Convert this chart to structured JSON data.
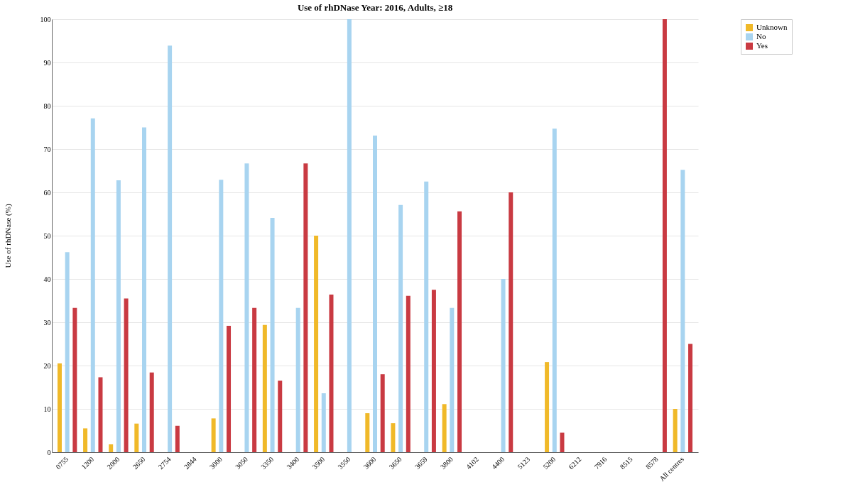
{
  "chart_data": {
    "type": "bar",
    "title": "Use of rhDNase Year: 2016, Adults, ≥18",
    "ylabel": "Use of rhDNase (%)",
    "categories": [
      "0755",
      "1200",
      "2000",
      "2650",
      "2754",
      "2844",
      "3000",
      "3050",
      "3350",
      "3400",
      "3500",
      "3550",
      "3600",
      "3650",
      "3659",
      "3800",
      "4102",
      "4400",
      "5123",
      "5200",
      "6212",
      "7916",
      "8515",
      "8578",
      "All centres"
    ],
    "series": [
      {
        "name": "Unknown",
        "color": "#f0b929",
        "values": [
          20.5,
          5.5,
          1.8,
          6.6,
          null,
          null,
          7.8,
          null,
          29.4,
          null,
          50,
          null,
          9,
          6.7,
          null,
          11.1,
          null,
          null,
          null,
          20.8,
          null,
          null,
          null,
          null,
          10
        ]
      },
      {
        "name": "No",
        "color": "#a8d4f0",
        "values": [
          46.2,
          77.1,
          62.8,
          75,
          93.9,
          null,
          62.9,
          66.7,
          54.1,
          33.3,
          13.6,
          100,
          73.1,
          57.1,
          62.5,
          33.3,
          null,
          40,
          null,
          74.7,
          null,
          null,
          null,
          null,
          65.2
        ]
      },
      {
        "name": "Yes",
        "color": "#c93a42",
        "values": [
          33.3,
          17.3,
          35.5,
          18.4,
          6.1,
          null,
          29.2,
          33.3,
          16.5,
          66.7,
          36.4,
          null,
          18,
          36.1,
          37.5,
          55.6,
          null,
          60,
          null,
          4.5,
          null,
          null,
          null,
          100,
          25
        ]
      }
    ],
    "ylim": [
      0,
      100
    ],
    "yticks": [
      0,
      10,
      20,
      30,
      40,
      50,
      60,
      70,
      80,
      90,
      100
    ],
    "grid": "y",
    "legend": "top right"
  }
}
